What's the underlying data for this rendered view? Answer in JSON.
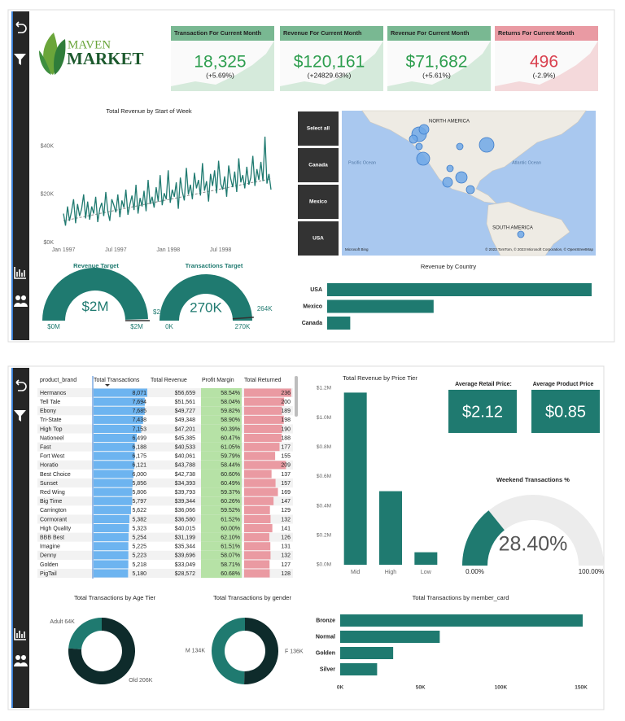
{
  "logo": {
    "line1": "MAVEN",
    "line2": "MARKET"
  },
  "kpis": [
    {
      "title": "Transaction For Current Month",
      "value": "18,325",
      "change": "(+5.69%)",
      "color": "#2e9e4f",
      "header_color": "#79b892"
    },
    {
      "title": "Revenue For Current Month",
      "value": "$120,161",
      "change": "(+24829.63%)",
      "color": "#2e9e4f",
      "header_color": "#79b892"
    },
    {
      "title": "Revenue For Current Month",
      "value": "$71,682",
      "change": "(+5.61%)",
      "color": "#2e9e4f",
      "header_color": "#79b892"
    },
    {
      "title": "Returns For Current Month",
      "value": "496",
      "change": "(-2.9%)",
      "color": "#d9414f",
      "header_color": "#e99aa3"
    }
  ],
  "slicer": [
    "Select all",
    "Canada",
    "Mexico",
    "USA"
  ],
  "map": {
    "labels": [
      "NORTH AMERICA",
      "Pacific Ocean",
      "Atlantic Ocean",
      "SOUTH AMERICA"
    ],
    "attribution": "© 2023 TomTom, © 2023 Microsoft Corporation, © OpenStreetMap",
    "brand": "Microsoft Bing"
  },
  "table": {
    "columns": [
      "product_brand",
      "Total Transactions",
      "Total Revenue",
      "Profit Margin",
      "Total Returned"
    ],
    "brand": [
      "Hermanos",
      "Tell Tale",
      "Ebony",
      "Tri-State",
      "High Top",
      "Nationeel",
      "Fast",
      "Fort West",
      "Horatio",
      "Best Choice",
      "Sunset",
      "Red Wing",
      "Big Time",
      "Carrington",
      "Cormorant",
      "High Quality",
      "BBB Best",
      "Imagine",
      "Denny",
      "Golden",
      "PigTail"
    ],
    "transactions": {
      "values": [
        8071,
        7694,
        7685,
        7438,
        7153,
        6499,
        6188,
        6175,
        6121,
        6000,
        5856,
        5806,
        5797,
        5622,
        5382,
        5323,
        5254,
        5225,
        5223,
        5218,
        5180
      ],
      "value_labels": [
        "8,071",
        "7,694",
        "7,685",
        "7,438",
        "7,153",
        "6,499",
        "6,188",
        "6,175",
        "6,121",
        "6,000",
        "5,856",
        "5,806",
        "5,797",
        "5,622",
        "5,382",
        "5,323",
        "5,254",
        "5,225",
        "5,223",
        "5,218",
        "5,180"
      ]
    },
    "revenue": [
      "$56,659",
      "$51,561",
      "$49,727",
      "$49,348",
      "$47,201",
      "$45,385",
      "$40,533",
      "$40,061",
      "$43,788",
      "$42,738",
      "$34,393",
      "$39,793",
      "$39,344",
      "$36,066",
      "$36,580",
      "$40,015",
      "$31,199",
      "$35,344",
      "$39,696",
      "$33,049",
      "$28,572"
    ],
    "margin": [
      "58.54%",
      "58.04%",
      "59.82%",
      "58.90%",
      "60.39%",
      "60.47%",
      "61.05%",
      "59.79%",
      "58.44%",
      "60.60%",
      "60.49%",
      "59.37%",
      "60.26%",
      "59.52%",
      "61.52%",
      "60.00%",
      "62.10%",
      "61.51%",
      "58.07%",
      "58.71%",
      "60.68%"
    ],
    "returned": [
      236,
      200,
      189,
      198,
      190,
      188,
      177,
      155,
      209,
      137,
      157,
      169,
      147,
      129,
      132,
      141,
      126,
      131,
      132,
      127,
      128
    ]
  },
  "cards": [
    {
      "title": "Average Retail Price:",
      "value": "$2.12"
    },
    {
      "title": "Average Product Price",
      "value": "$0.85"
    }
  ],
  "chart_data": [
    {
      "type": "line",
      "title": "Total Revenue by Start of Week",
      "color": "#1f7a70",
      "categories": [
        "Jan 1997",
        null,
        null,
        null,
        null,
        null,
        null,
        null,
        null,
        null,
        null,
        null,
        null,
        null,
        null,
        null,
        null,
        null,
        null,
        null,
        null,
        null,
        null,
        null,
        null,
        null,
        "Jul 1997",
        null,
        null,
        null,
        null,
        null,
        null,
        null,
        null,
        null,
        null,
        null,
        null,
        null,
        null,
        null,
        null,
        null,
        null,
        null,
        null,
        null,
        null,
        null,
        null,
        null,
        "Jan 1998",
        null,
        null,
        null,
        null,
        null,
        null,
        null,
        null,
        null,
        null,
        null,
        null,
        null,
        null,
        null,
        null,
        null,
        null,
        null,
        null,
        null,
        null,
        null,
        null,
        null,
        "Jul 1998",
        null,
        null,
        null,
        null,
        null,
        null,
        null,
        null,
        null,
        null,
        null,
        null,
        null,
        null,
        null,
        null,
        null,
        null,
        null,
        null,
        null,
        null,
        null,
        null,
        null
      ],
      "values": [
        12000,
        7000,
        15000,
        9000,
        13000,
        18000,
        8000,
        16000,
        11000,
        14000,
        20000,
        10000,
        17000,
        9500,
        15000,
        12000,
        19000,
        8500,
        14000,
        16500,
        11000,
        21000,
        13000,
        9000,
        18000,
        15500,
        12500,
        20000,
        10500,
        17500,
        14500,
        22000,
        11500,
        16000,
        19500,
        13500,
        24000,
        12000,
        18500,
        15000,
        21500,
        13000,
        26000,
        16000,
        19000,
        14500,
        23000,
        17000,
        28000,
        15500,
        20500,
        18000,
        30000,
        16500,
        22000,
        19000,
        25000,
        14000,
        27000,
        21000,
        17500,
        31000,
        20000,
        24000,
        18000,
        29000,
        22500,
        26000,
        19500,
        33000,
        21500,
        25500,
        17000,
        28500,
        23500,
        30000,
        20500,
        34000,
        24500,
        22000,
        27500,
        19000,
        32000,
        26500,
        23000,
        29500,
        21000,
        35000,
        25000,
        28000,
        22500,
        31500,
        24000,
        27000,
        36000,
        23500,
        30500,
        26000,
        33500,
        25500,
        44000,
        24500,
        28500,
        22000
      ],
      "trend": [
        9000,
        26500
      ],
      "ylim": [
        0,
        46000
      ],
      "yticks": [
        {
          "value": 0,
          "label": "$0K"
        },
        {
          "value": 20000,
          "label": "$20K"
        },
        {
          "value": 40000,
          "label": "$40K"
        }
      ]
    },
    {
      "type": "gauge",
      "title": "Revenue Target",
      "color": "#1f7a70",
      "values": [
        1980000
      ],
      "value_labels": [
        "$2M"
      ],
      "ylim": [
        0,
        2000000
      ],
      "yticks": [
        {
          "value": 0,
          "label": "$0M"
        },
        {
          "value": 2000000,
          "label": "$2M"
        }
      ],
      "target": {
        "value": 2000000,
        "label": "$2M"
      }
    },
    {
      "type": "gauge",
      "title": "Transactions Target",
      "color": "#1f7a70",
      "values": [
        270000
      ],
      "value_labels": [
        "270K"
      ],
      "ylim": [
        0,
        270000
      ],
      "yticks": [
        {
          "value": 0,
          "label": "0K"
        },
        {
          "value": 270000,
          "label": "270K"
        }
      ],
      "target": {
        "value": 264000,
        "label": "264K"
      }
    },
    {
      "type": "hbar",
      "title": "Revenue by Country",
      "color": "#1f7a70",
      "categories": [
        "USA",
        "Mexico",
        "Canada"
      ],
      "values": [
        1180000,
        475000,
        103000
      ]
    },
    {
      "type": "bar",
      "title": "Total Revenue by Price Tier",
      "color": "#1f7a70",
      "categories": [
        "Mid",
        "High",
        "Low"
      ],
      "values": [
        1170000,
        500000,
        85000
      ],
      "ylim": [
        0,
        1200000
      ],
      "yticks": [
        {
          "value": 0,
          "label": "$0.0M"
        },
        {
          "value": 200000,
          "label": "$0.2M"
        },
        {
          "value": 400000,
          "label": "$0.4M"
        },
        {
          "value": 600000,
          "label": "$0.6M"
        },
        {
          "value": 800000,
          "label": "$0.8M"
        },
        {
          "value": 1000000,
          "label": "$1.0M"
        },
        {
          "value": 1200000,
          "label": "$1.2M"
        }
      ]
    },
    {
      "type": "gauge",
      "title": "Weekend Transactions %",
      "color": "#1f7a70",
      "values": [
        28.4
      ],
      "value_labels": [
        "28.40%"
      ],
      "ylim": [
        0,
        100
      ],
      "yticks": [
        {
          "value": 0,
          "label": "0.00%"
        },
        {
          "value": 100,
          "label": "100.00%"
        }
      ]
    },
    {
      "type": "donut",
      "title": "Total Transactions by Age Tier",
      "colors": [
        "#1f7a70",
        "#0e2b2b"
      ],
      "values": [
        64000,
        206000
      ],
      "value_labels": [
        "Adult 64K",
        "Old 206K"
      ]
    },
    {
      "type": "donut",
      "title": "Total Transactions by gender",
      "colors": [
        "#1f7a70",
        "#0e2b2b"
      ],
      "values": [
        134000,
        136000
      ],
      "value_labels": [
        "M 134K",
        "F 136K"
      ]
    },
    {
      "type": "hbar",
      "title": "Total Transactions by member_card",
      "color": "#1f7a70",
      "categories": [
        "Bronze",
        "Normal",
        "Golden",
        "Silver"
      ],
      "values": [
        151000,
        62000,
        33000,
        23000
      ],
      "xlim": [
        0,
        152000
      ],
      "xticks": [
        {
          "value": 0,
          "label": "0K"
        },
        {
          "value": 50000,
          "label": "50K"
        },
        {
          "value": 100000,
          "label": "100K"
        },
        {
          "value": 150000,
          "label": "150K"
        }
      ]
    }
  ]
}
